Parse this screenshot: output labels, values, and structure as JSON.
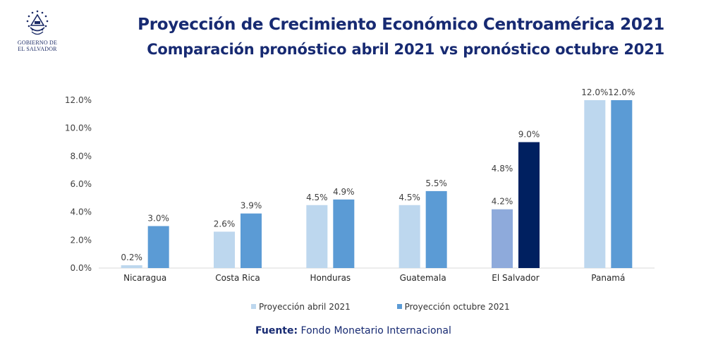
{
  "header": {
    "title": "Proyección de Crecimiento Económico Centroamérica 2021",
    "subtitle": "Comparación pronóstico abril 2021 vs pronóstico octubre 2021"
  },
  "logo": {
    "line1": "GOBIERNO DE",
    "line2": "EL SALVADOR",
    "icon": "coat-of-arms-icon"
  },
  "colors": {
    "april": "#bdd7ee",
    "october": "#5b9bd5",
    "el_salvador_april": "#8eaadb",
    "el_salvador_october": "#002060",
    "title": "#172a72",
    "axis": "#d9d9d9"
  },
  "chart_data": {
    "type": "bar",
    "title": "Proyección de Crecimiento Económico Centroamérica 2021",
    "subtitle": "Comparación pronóstico abril 2021 vs pronóstico octubre 2021",
    "categories": [
      "Nicaragua",
      "Costa Rica",
      "Honduras",
      "Guatemala",
      "El Salvador",
      "Panamá"
    ],
    "series": [
      {
        "name": "Proyección abril 2021",
        "values": [
          0.2,
          2.6,
          4.5,
          4.5,
          4.2,
          12.0
        ],
        "labels": [
          "0.2%",
          "2.6%",
          "4.5%",
          "4.5%",
          "4.2%",
          "12.0%"
        ]
      },
      {
        "name": "Proyección octubre 2021",
        "values": [
          3.0,
          3.9,
          4.9,
          5.5,
          9.0,
          12.0
        ],
        "labels": [
          "3.0%",
          "3.9%",
          "4.9%",
          "5.5%",
          "9.0%",
          "12.0%"
        ]
      }
    ],
    "annotations": [
      {
        "category": "El Salvador",
        "text": "4.8%"
      }
    ],
    "ylim": [
      0,
      12
    ],
    "yticks": [
      "0.0%",
      "2.0%",
      "4.0%",
      "6.0%",
      "8.0%",
      "10.0%",
      "12.0%"
    ],
    "xlabel": "",
    "ylabel": "",
    "grid": false,
    "legend_position": "bottom"
  },
  "source": {
    "label": "Fuente:",
    "text": "Fondo Monetario Internacional"
  }
}
